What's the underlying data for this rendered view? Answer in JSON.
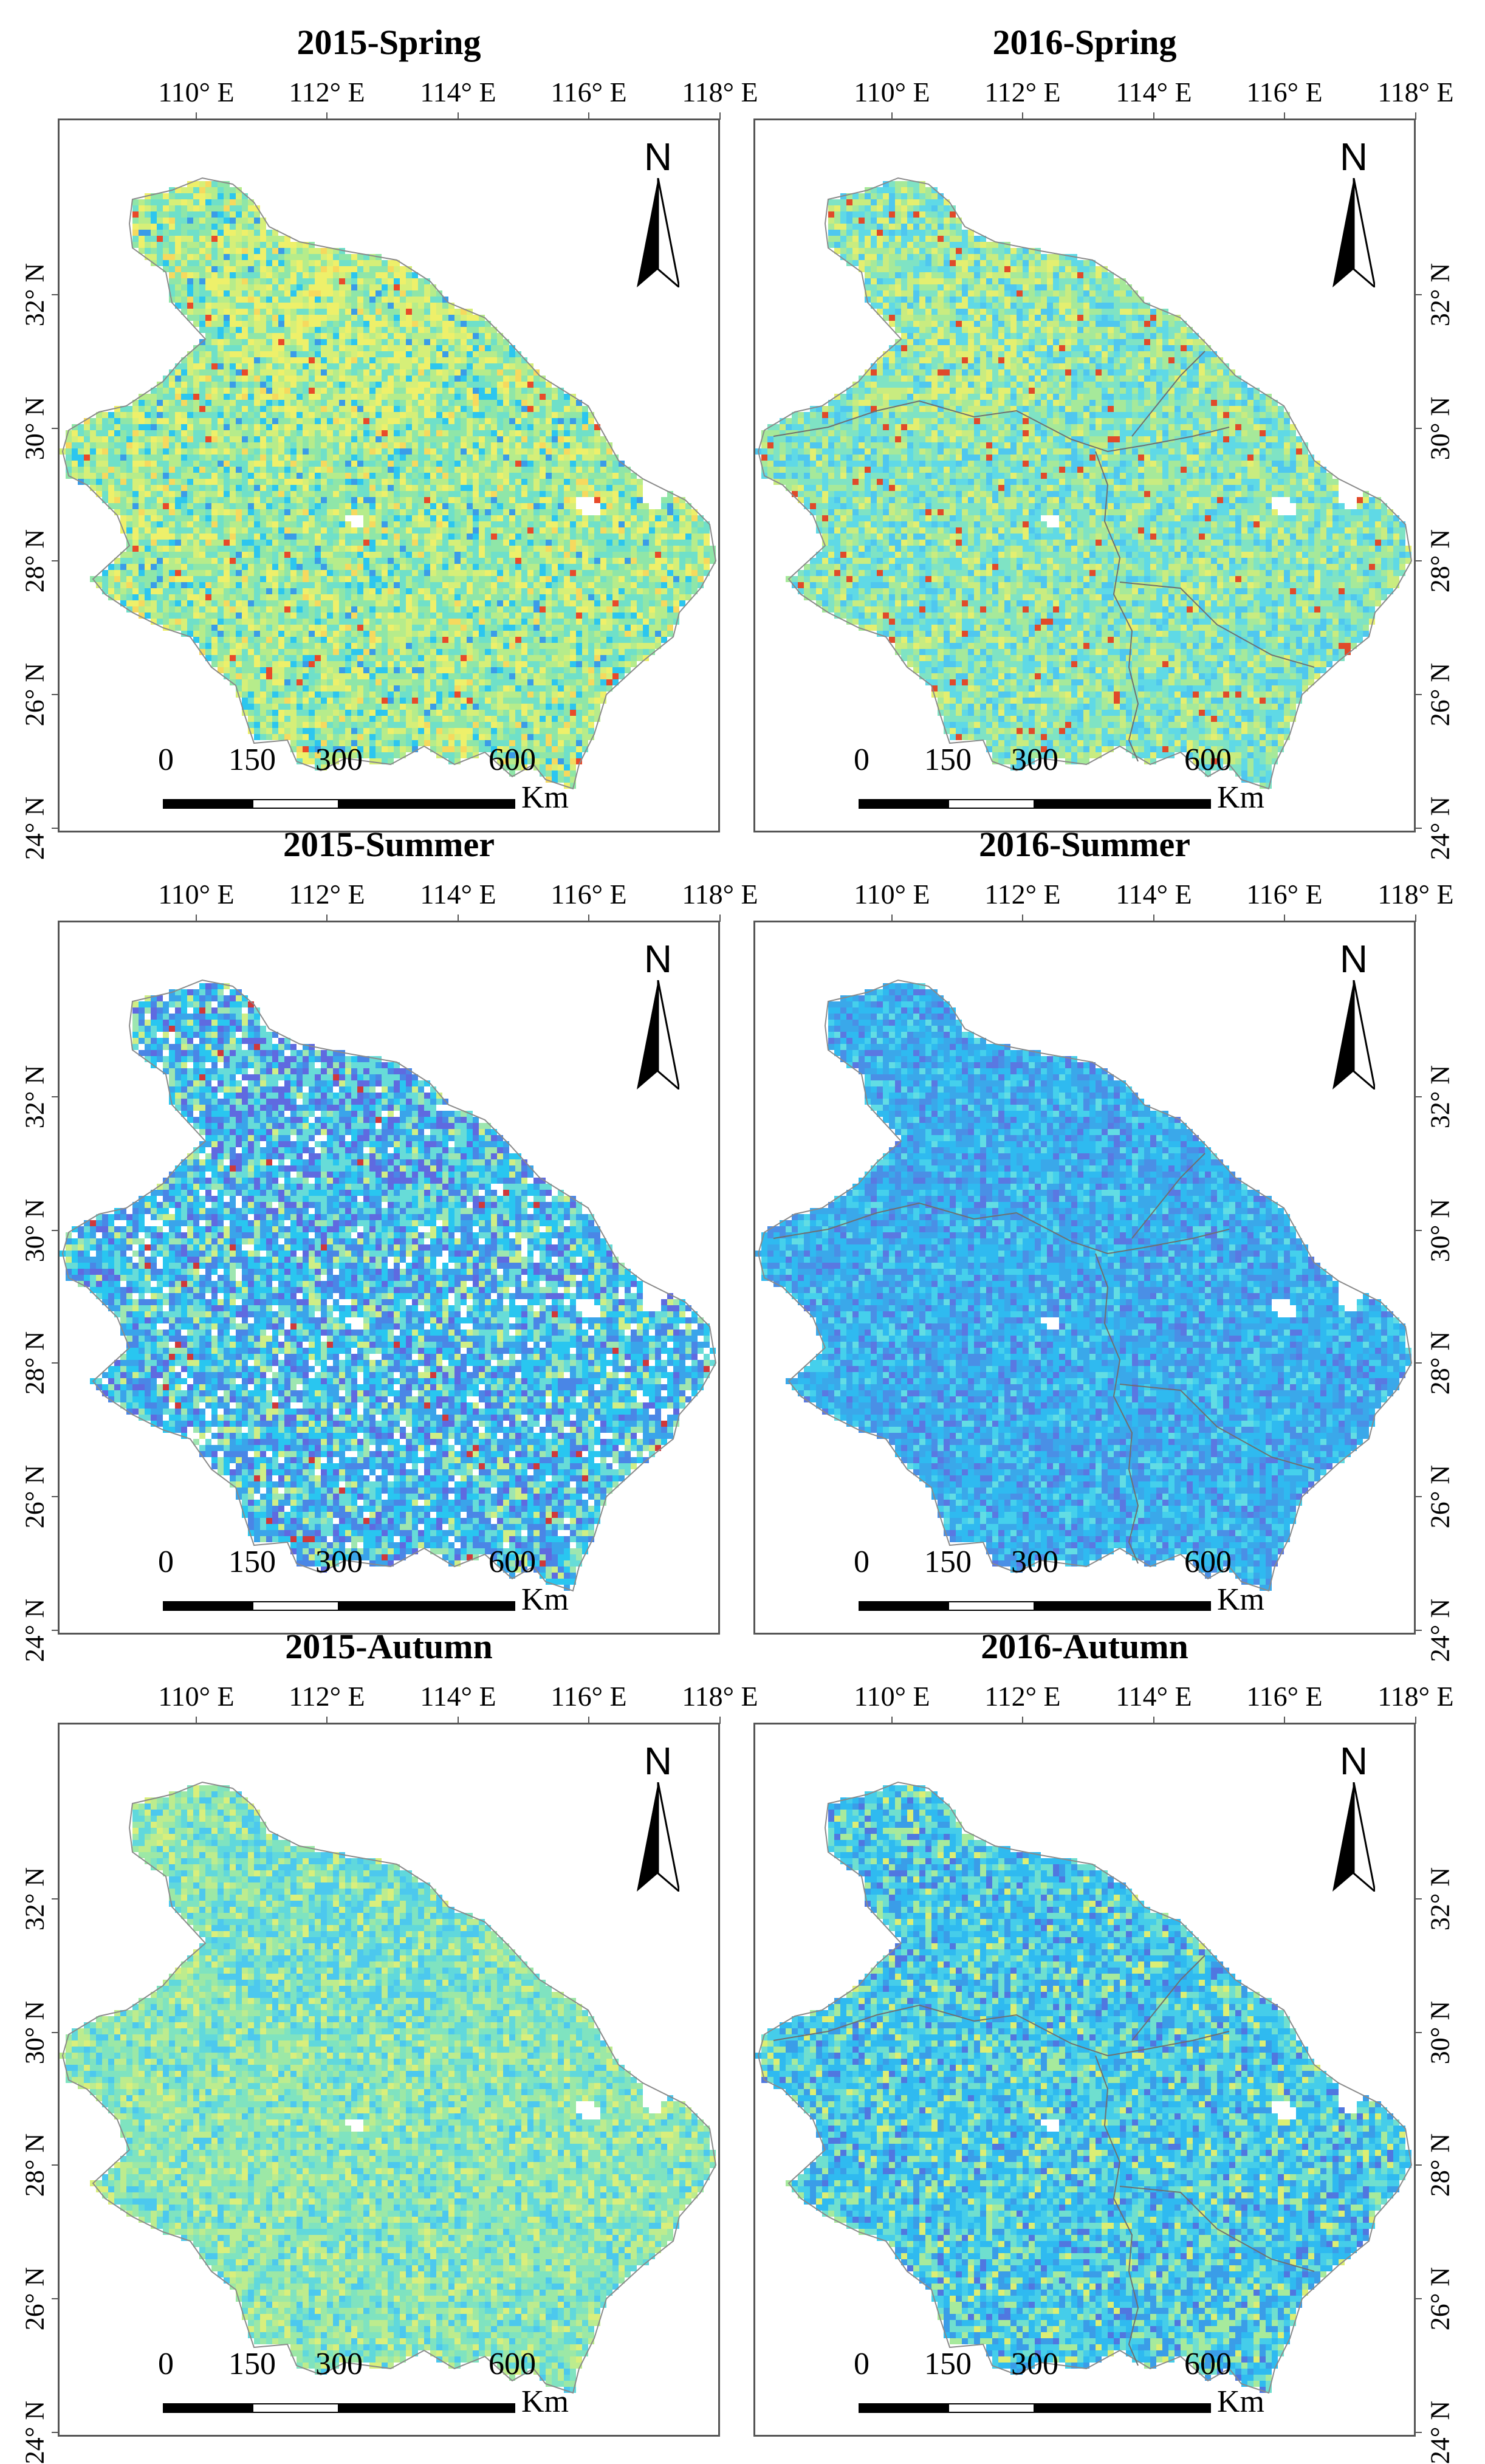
{
  "panels": [
    {
      "title": "2015-Spring",
      "palette": [
        "#6fe0c9",
        "#8fe6a8",
        "#b6ec8b",
        "#d6ef78",
        "#eef06a",
        "#f6d95e",
        "#e84a2a",
        "#2cc6ef",
        "#3a9ce8"
      ],
      "weights": [
        0.22,
        0.22,
        0.18,
        0.13,
        0.1,
        0.04,
        0.01,
        0.07,
        0.03
      ],
      "hot_spot": "north-center",
      "has_borders": false
    },
    {
      "title": "2016-Spring",
      "palette": [
        "#5fd9e6",
        "#7fe3c4",
        "#a6e99a",
        "#c9ec80",
        "#e4ef70",
        "#4fc7ef",
        "#e04a2a"
      ],
      "weights": [
        0.2,
        0.24,
        0.22,
        0.14,
        0.06,
        0.12,
        0.02
      ],
      "hot_spot": "north-west",
      "has_borders": true
    },
    {
      "title": "2015-Summer",
      "palette": [
        "#29c6f0",
        "#3aa4ea",
        "#4a86e6",
        "#5f6ae0",
        "#67dcd8",
        "#9ee6b0",
        "#cfee86",
        "#ffffff",
        "#d0383a"
      ],
      "weights": [
        0.22,
        0.2,
        0.14,
        0.07,
        0.13,
        0.1,
        0.06,
        0.07,
        0.01
      ],
      "hot_spot": "north-center",
      "has_borders": false
    },
    {
      "title": "2016-Summer",
      "palette": [
        "#3aa8ea",
        "#2fbaf0",
        "#4a8fe6",
        "#45d0ec",
        "#5a78e2",
        "#62dde4"
      ],
      "weights": [
        0.28,
        0.26,
        0.16,
        0.14,
        0.08,
        0.08
      ],
      "hot_spot": "none",
      "has_borders": true
    },
    {
      "title": "2015-Autumn",
      "palette": [
        "#7fe3c0",
        "#9ce8a6",
        "#bdec8e",
        "#60d8dc",
        "#4cc8ee",
        "#d9ef7c"
      ],
      "weights": [
        0.24,
        0.24,
        0.16,
        0.16,
        0.1,
        0.1
      ],
      "hot_spot": "north-center",
      "has_borders": false
    },
    {
      "title": "2016-Autumn",
      "palette": [
        "#2fbaf0",
        "#45cdea",
        "#6fdfcf",
        "#3a9de8",
        "#a7ea9c",
        "#dcee74",
        "#5077e0"
      ],
      "weights": [
        0.26,
        0.22,
        0.18,
        0.14,
        0.1,
        0.05,
        0.05
      ],
      "hot_spot": "south-east",
      "has_borders": true
    }
  ],
  "axes": {
    "lon_labels": [
      "110° E",
      "112° E",
      "114° E",
      "116° E",
      "118° E"
    ],
    "lat_labels": [
      "32° N",
      "30° N",
      "28° N",
      "26° N",
      "24° N"
    ]
  },
  "north_arrow": {
    "letter": "N"
  },
  "scale_bar": {
    "labels": [
      "0",
      "150",
      "300",
      "600"
    ],
    "unit": "Km"
  }
}
